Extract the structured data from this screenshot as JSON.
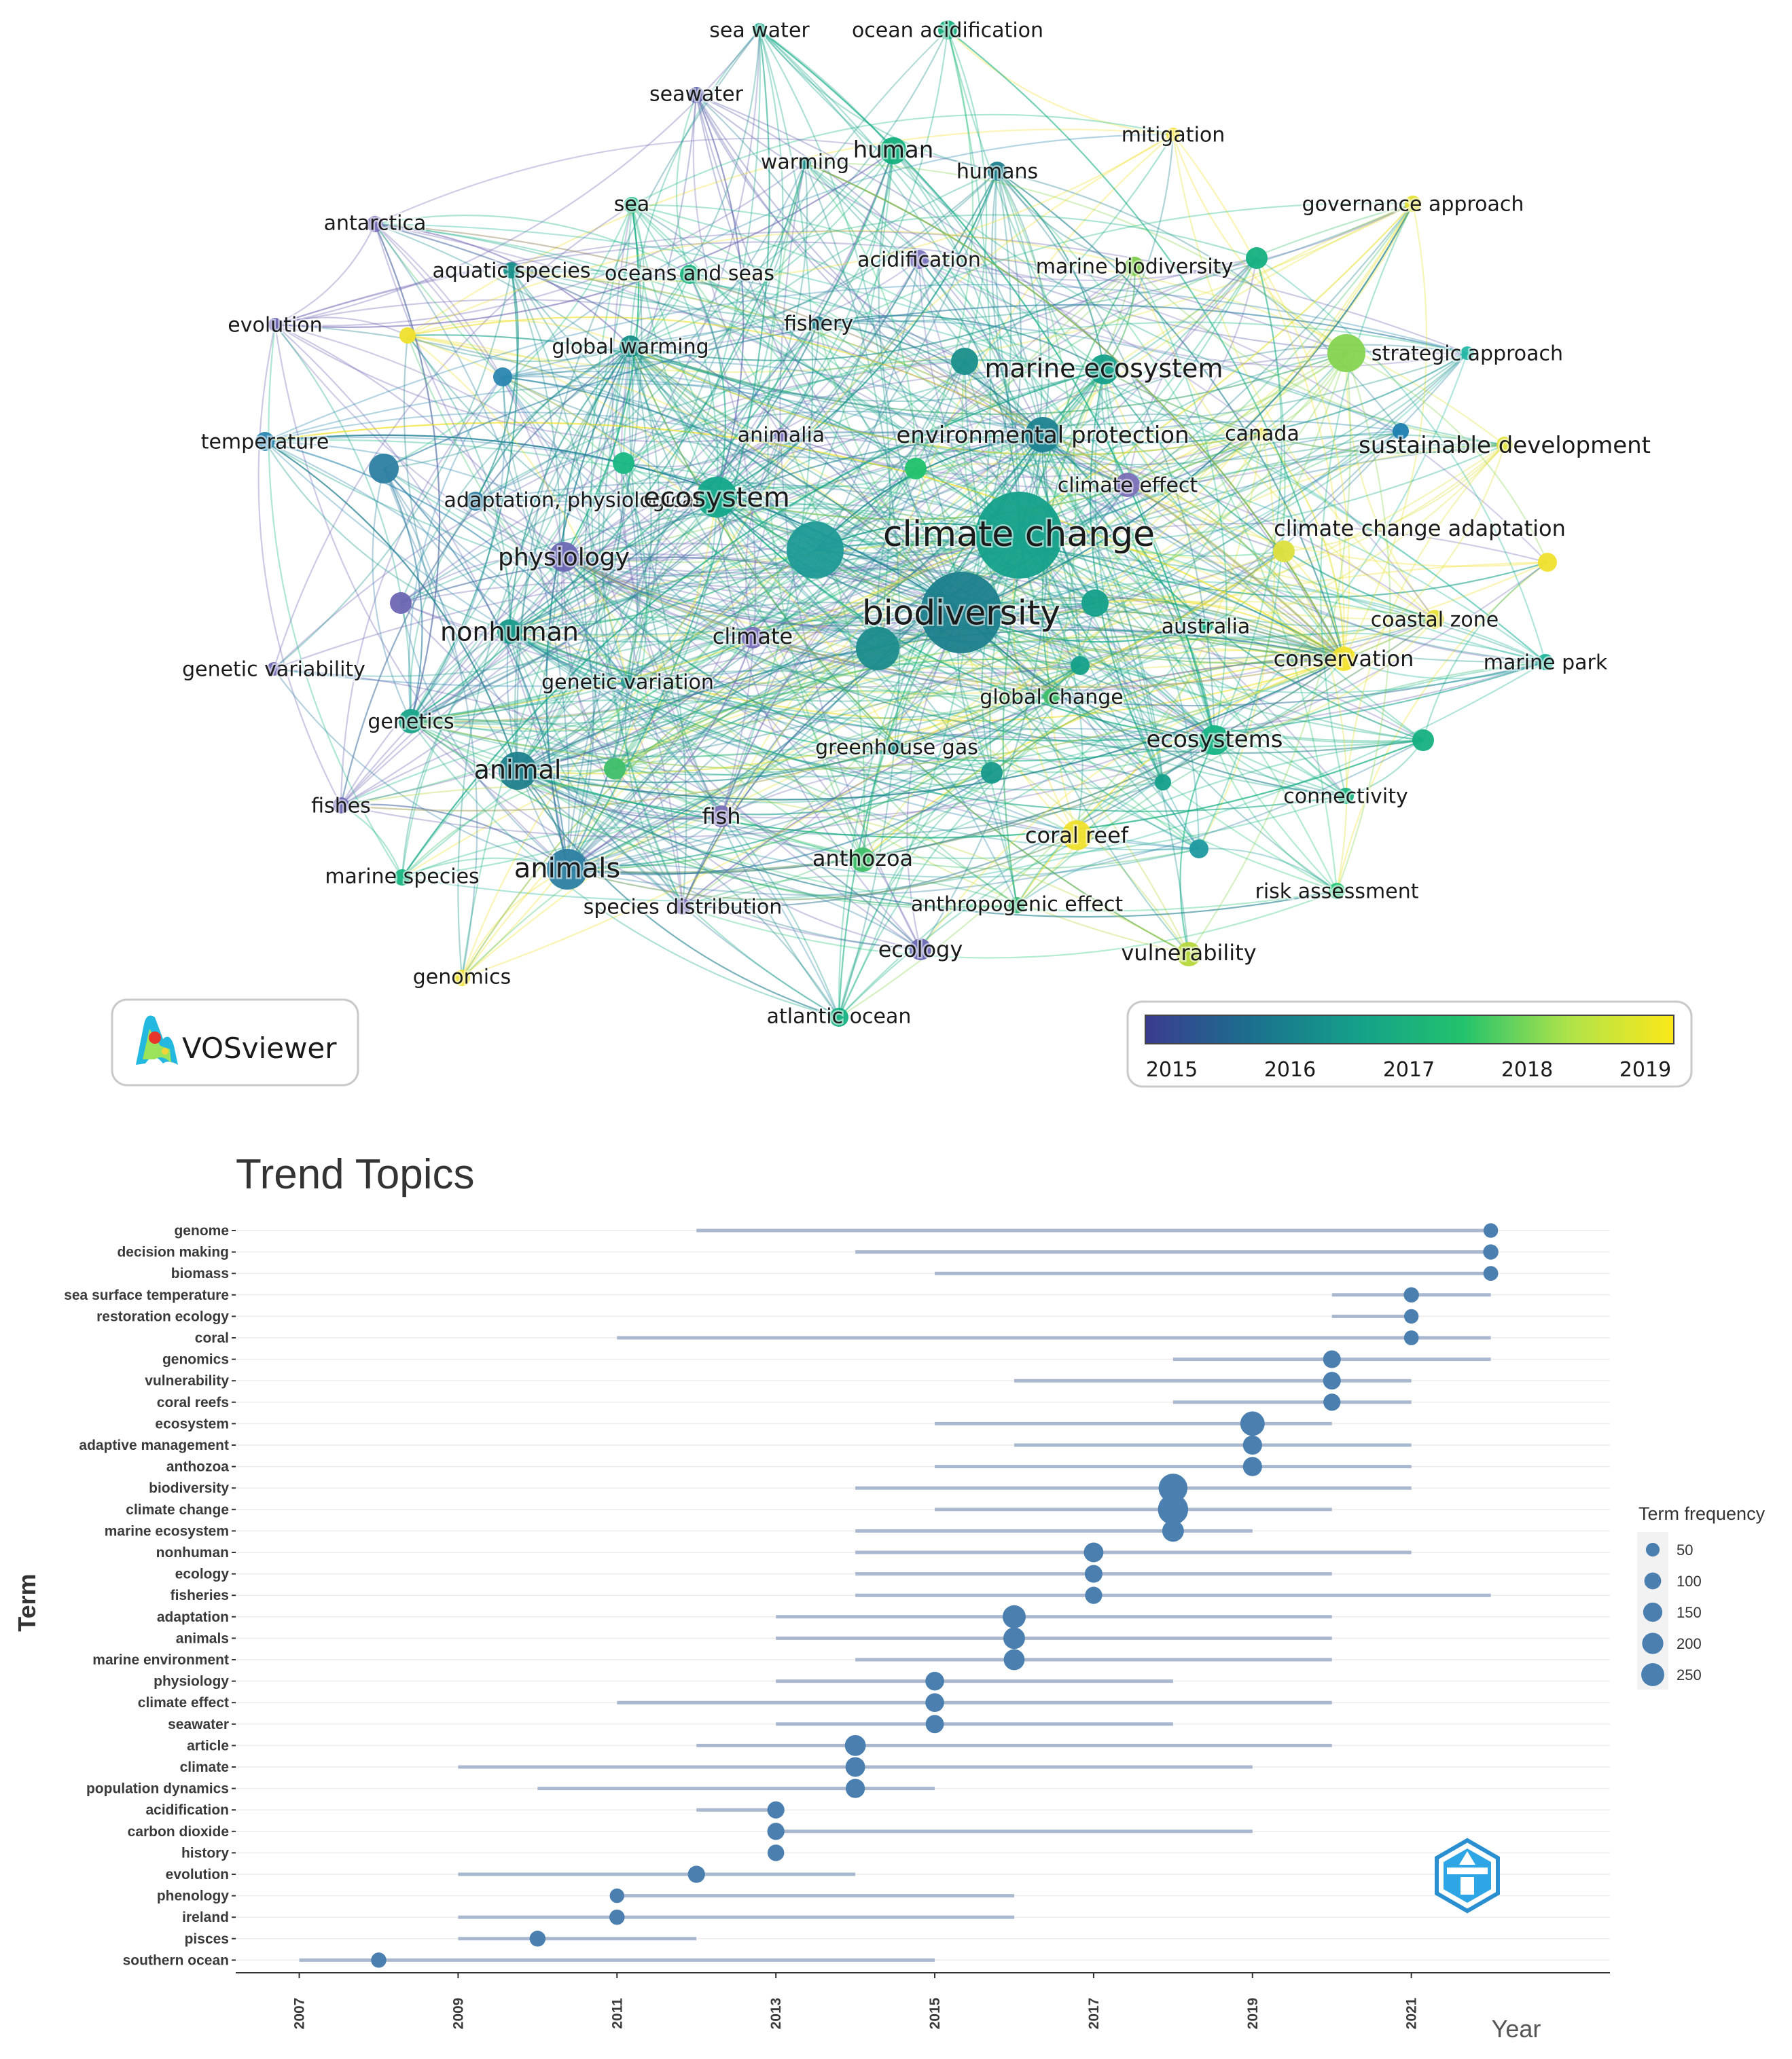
{
  "network": {
    "logo_text": "VOSviewer",
    "colorbar": {
      "labels": [
        "2015",
        "2016",
        "2017",
        "2018",
        "2019"
      ],
      "colors": [
        "#3b3b8f",
        "#1b6f8e",
        "#14a08a",
        "#22c26d",
        "#aee34a",
        "#fbe819"
      ]
    },
    "terms": [
      {
        "label": "sea water",
        "size": 30,
        "color": "#17a58a"
      },
      {
        "label": "ocean acidification",
        "size": 30,
        "color": "#14b080"
      },
      {
        "label": "seawater",
        "size": 30,
        "color": "#5a5fa8"
      },
      {
        "label": "mitigation",
        "size": 30,
        "color": "#f4e02c"
      },
      {
        "label": "warming",
        "size": 30,
        "color": "#1a8f8b"
      },
      {
        "label": "human",
        "size": 34,
        "color": "#14b07e"
      },
      {
        "label": "humans",
        "size": 30,
        "color": "#1e7f8c"
      },
      {
        "label": "governance approach",
        "size": 30,
        "color": "#e6e234"
      },
      {
        "label": "antarctica",
        "size": 30,
        "color": "#7a70b8"
      },
      {
        "label": "sea",
        "size": 30,
        "color": "#19b883"
      },
      {
        "label": "aquatic species",
        "size": 30,
        "color": "#178f8a"
      },
      {
        "label": "oceans and seas",
        "size": 30,
        "color": "#1ab57f"
      },
      {
        "label": "acidification",
        "size": 30,
        "color": "#7d76bf"
      },
      {
        "label": "marine biodiversity",
        "size": 30,
        "color": "#7fcc4d"
      },
      {
        "label": "evolution",
        "size": 30,
        "color": "#6c66b2"
      },
      {
        "label": "fishery",
        "size": 30,
        "color": "#1c7e8c"
      },
      {
        "label": "global warming",
        "size": 30,
        "color": "#168f89"
      },
      {
        "label": "strategic approach",
        "size": 30,
        "color": "#24b8a5"
      },
      {
        "label": "marine ecosystem",
        "size": 38,
        "color": "#14a08a"
      },
      {
        "label": "temperature",
        "size": 30,
        "color": "#2a86b0"
      },
      {
        "label": "animalia",
        "size": 30,
        "color": "#7a70b8"
      },
      {
        "label": "environmental protection",
        "size": 34,
        "color": "#1e8390"
      },
      {
        "label": "canada",
        "size": 30,
        "color": "#e8e236"
      },
      {
        "label": "sustainable development",
        "size": 34,
        "color": "#e1e03a"
      },
      {
        "label": "climate effect",
        "size": 30,
        "color": "#7a70b8"
      },
      {
        "label": "adaptation, physiological",
        "size": 30,
        "color": "#2d7fa2"
      },
      {
        "label": "ecosystem",
        "size": 40,
        "color": "#14a88a"
      },
      {
        "label": "climate change",
        "size": 52,
        "color": "#14a08a"
      },
      {
        "label": "climate change adaptation",
        "size": 32,
        "color": "#dde03c"
      },
      {
        "label": "physiology",
        "size": 36,
        "color": "#6c68b4"
      },
      {
        "label": "biodiversity",
        "size": 50,
        "color": "#1c7f8c"
      },
      {
        "label": "nonhuman",
        "size": 38,
        "color": "#17998a"
      },
      {
        "label": "climate",
        "size": 32,
        "color": "#7a70b8"
      },
      {
        "label": "australia",
        "size": 30,
        "color": "#18b586"
      },
      {
        "label": "coastal zone",
        "size": 30,
        "color": "#e5e236"
      },
      {
        "label": "genetic variability",
        "size": 30,
        "color": "#6e66b2"
      },
      {
        "label": "conservation",
        "size": 32,
        "color": "#f2e22b"
      },
      {
        "label": "marine park",
        "size": 30,
        "color": "#1fb59a"
      },
      {
        "label": "genetic variation",
        "size": 30,
        "color": "#2a9a8e"
      },
      {
        "label": "global change",
        "size": 30,
        "color": "#3fbf6a"
      },
      {
        "label": "genetics",
        "size": 30,
        "color": "#19a58a"
      },
      {
        "label": "ecosystems",
        "size": 34,
        "color": "#18b586"
      },
      {
        "label": "greenhouse gas",
        "size": 30,
        "color": "#1a8f8b"
      },
      {
        "label": "animal",
        "size": 38,
        "color": "#1e7f8c"
      },
      {
        "label": "connectivity",
        "size": 30,
        "color": "#19b583"
      },
      {
        "label": "fishes",
        "size": 30,
        "color": "#6c66b2"
      },
      {
        "label": "fish",
        "size": 32,
        "color": "#7a70b8"
      },
      {
        "label": "coral reef",
        "size": 32,
        "color": "#f0e02c"
      },
      {
        "label": "marine species",
        "size": 30,
        "color": "#19b883"
      },
      {
        "label": "animals",
        "size": 40,
        "color": "#2d7fa2"
      },
      {
        "label": "anthozoa",
        "size": 32,
        "color": "#3fbf6a"
      },
      {
        "label": "risk assessment",
        "size": 30,
        "color": "#2bc77a"
      },
      {
        "label": "species distribution",
        "size": 30,
        "color": "#7a70b8"
      },
      {
        "label": "anthropogenic effect",
        "size": 30,
        "color": "#36b874"
      },
      {
        "label": "ecology",
        "size": 32,
        "color": "#6c68b4"
      },
      {
        "label": "vulnerability",
        "size": 32,
        "color": "#b5d83a"
      },
      {
        "label": "genomics",
        "size": 30,
        "color": "#f0e02c"
      },
      {
        "label": "atlantic ocean",
        "size": 30,
        "color": "#14b080"
      }
    ]
  },
  "trend": {
    "title": "Trend Topics",
    "ylabel": "Term",
    "xlabel": "Year",
    "legend_title": "Term frequency",
    "legend_values": [
      "50",
      "100",
      "150",
      "200",
      "250"
    ],
    "logo_alt": "bibliometrix",
    "colors": {
      "dot": "#4a7fb0",
      "line": "#a9b7cf"
    },
    "chart_data": {
      "type": "scatter",
      "title": "Trend Topics",
      "xlabel": "Year",
      "ylabel": "Term",
      "x_ticks": [
        "2007",
        "2009",
        "2011",
        "2013",
        "2015",
        "2017",
        "2019",
        "2021"
      ],
      "xlim": [
        2006.2,
        2023.5
      ],
      "terms": [
        {
          "term": "genome",
          "q1": 2012,
          "median": 2022,
          "q3": 2022,
          "freq": 20
        },
        {
          "term": "decision making",
          "q1": 2014,
          "median": 2022,
          "q3": 2022,
          "freq": 25
        },
        {
          "term": "biomass",
          "q1": 2015,
          "median": 2022,
          "q3": 2022,
          "freq": 22
        },
        {
          "term": "sea surface temperature",
          "q1": 2020,
          "median": 2021,
          "q3": 2022,
          "freq": 25
        },
        {
          "term": "restoration ecology",
          "q1": 2020,
          "median": 2021,
          "q3": 2021,
          "freq": 20
        },
        {
          "term": "coral",
          "q1": 2011,
          "median": 2021,
          "q3": 2022,
          "freq": 22
        },
        {
          "term": "genomics",
          "q1": 2018,
          "median": 2020,
          "q3": 2022,
          "freq": 45
        },
        {
          "term": "vulnerability",
          "q1": 2016,
          "median": 2020,
          "q3": 2021,
          "freq": 45
        },
        {
          "term": "coral reefs",
          "q1": 2018,
          "median": 2020,
          "q3": 2021,
          "freq": 40
        },
        {
          "term": "ecosystem",
          "q1": 2015,
          "median": 2019,
          "q3": 2020,
          "freq": 130
        },
        {
          "term": "adaptive management",
          "q1": 2016,
          "median": 2019,
          "q3": 2021,
          "freq": 60
        },
        {
          "term": "anthozoa",
          "q1": 2015,
          "median": 2019,
          "q3": 2021,
          "freq": 60
        },
        {
          "term": "biodiversity",
          "q1": 2014,
          "median": 2018,
          "q3": 2021,
          "freq": 210
        },
        {
          "term": "climate change",
          "q1": 2015,
          "median": 2018,
          "q3": 2020,
          "freq": 240
        },
        {
          "term": "marine ecosystem",
          "q1": 2014,
          "median": 2018,
          "q3": 2019,
          "freq": 90
        },
        {
          "term": "nonhuman",
          "q1": 2014,
          "median": 2017,
          "q3": 2021,
          "freq": 65
        },
        {
          "term": "ecology",
          "q1": 2014,
          "median": 2017,
          "q3": 2020,
          "freq": 45
        },
        {
          "term": "fisheries",
          "q1": 2014,
          "median": 2017,
          "q3": 2022,
          "freq": 40
        },
        {
          "term": "adaptation",
          "q1": 2013,
          "median": 2016,
          "q3": 2020,
          "freq": 110
        },
        {
          "term": "animals",
          "q1": 2013,
          "median": 2016,
          "q3": 2020,
          "freq": 90
        },
        {
          "term": "marine environment",
          "q1": 2014,
          "median": 2016,
          "q3": 2020,
          "freq": 80
        },
        {
          "term": "physiology",
          "q1": 2013,
          "median": 2015,
          "q3": 2018,
          "freq": 55
        },
        {
          "term": "climate effect",
          "q1": 2011,
          "median": 2015,
          "q3": 2020,
          "freq": 55
        },
        {
          "term": "seawater",
          "q1": 2013,
          "median": 2015,
          "q3": 2018,
          "freq": 50
        },
        {
          "term": "article",
          "q1": 2012,
          "median": 2014,
          "q3": 2020,
          "freq": 80
        },
        {
          "term": "climate",
          "q1": 2009,
          "median": 2014,
          "q3": 2019,
          "freq": 65
        },
        {
          "term": "population dynamics",
          "q1": 2010,
          "median": 2014,
          "q3": 2015,
          "freq": 60
        },
        {
          "term": "acidification",
          "q1": 2012,
          "median": 2013,
          "q3": 2013,
          "freq": 40
        },
        {
          "term": "carbon dioxide",
          "q1": 2013,
          "median": 2013,
          "q3": 2019,
          "freq": 40
        },
        {
          "term": "history",
          "q1": 2013,
          "median": 2013,
          "q3": 2013,
          "freq": 35
        },
        {
          "term": "evolution",
          "q1": 2009,
          "median": 2012,
          "q3": 2014,
          "freq": 40
        },
        {
          "term": "phenology",
          "q1": 2011,
          "median": 2011,
          "q3": 2016,
          "freq": 20
        },
        {
          "term": "ireland",
          "q1": 2009,
          "median": 2011,
          "q3": 2016,
          "freq": 25
        },
        {
          "term": "pisces",
          "q1": 2009,
          "median": 2010,
          "q3": 2012,
          "freq": 30
        },
        {
          "term": "southern ocean",
          "q1": 2007,
          "median": 2008,
          "q3": 2015,
          "freq": 25
        }
      ]
    }
  }
}
